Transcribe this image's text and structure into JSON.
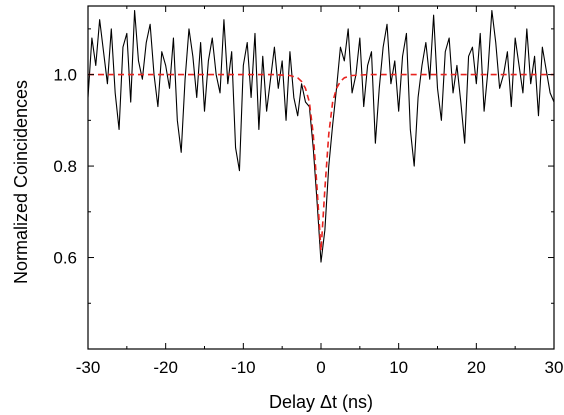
{
  "chart_data": {
    "type": "line",
    "title": "",
    "xlabel": "Delay Δt (ns)",
    "ylabel": "Normalized Coincidences",
    "xlim": [
      -30,
      30
    ],
    "ylim": [
      0.4,
      1.15
    ],
    "x_ticks": [
      -30,
      -20,
      -10,
      0,
      10,
      20,
      30
    ],
    "x_tick_labels": [
      "-30",
      "-20",
      "-10",
      "0",
      "10",
      "20",
      "30"
    ],
    "y_ticks": [
      0.6,
      0.8,
      1.0
    ],
    "y_tick_labels": [
      "0.6",
      "0.8",
      "1.0"
    ],
    "grid": false,
    "legend": "none",
    "series": [
      {
        "style": "solid",
        "color": "#000000",
        "x": [
          -30.0,
          -29.5,
          -29.0,
          -28.5,
          -28.0,
          -27.5,
          -27.0,
          -26.5,
          -26.0,
          -25.5,
          -25.0,
          -24.5,
          -24.0,
          -23.5,
          -23.0,
          -22.5,
          -22.0,
          -21.5,
          -21.0,
          -20.5,
          -20.0,
          -19.5,
          -19.0,
          -18.5,
          -18.0,
          -17.5,
          -17.0,
          -16.5,
          -16.0,
          -15.5,
          -15.0,
          -14.5,
          -14.0,
          -13.5,
          -13.0,
          -12.5,
          -12.0,
          -11.5,
          -11.0,
          -10.5,
          -10.0,
          -9.5,
          -9.0,
          -8.5,
          -8.0,
          -7.5,
          -7.0,
          -6.5,
          -6.0,
          -5.5,
          -5.0,
          -4.5,
          -4.0,
          -3.5,
          -3.0,
          -2.5,
          -2.0,
          -1.5,
          -1.0,
          -0.5,
          0.0,
          0.5,
          1.0,
          1.5,
          2.0,
          2.5,
          3.0,
          3.5,
          4.0,
          4.5,
          5.0,
          5.5,
          6.0,
          6.5,
          7.0,
          7.5,
          8.0,
          8.5,
          9.0,
          9.5,
          10.0,
          10.5,
          11.0,
          11.5,
          12.0,
          12.5,
          13.0,
          13.5,
          14.0,
          14.5,
          15.0,
          15.5,
          16.0,
          16.5,
          17.0,
          17.5,
          18.0,
          18.5,
          19.0,
          19.5,
          20.0,
          20.5,
          21.0,
          21.5,
          22.0,
          22.5,
          23.0,
          23.5,
          24.0,
          24.5,
          25.0,
          25.5,
          26.0,
          26.5,
          27.0,
          27.5,
          28.0,
          28.5,
          29.0,
          29.5,
          30.0
        ],
        "y": [
          0.95,
          1.08,
          1.02,
          1.12,
          1.05,
          0.98,
          1.1,
          0.96,
          0.88,
          1.06,
          1.09,
          0.94,
          1.14,
          1.03,
          0.99,
          1.07,
          1.11,
          1.0,
          0.93,
          1.05,
          1.02,
          0.97,
          1.08,
          0.9,
          0.83,
          0.99,
          1.1,
          1.04,
          0.95,
          1.07,
          0.92,
          1.03,
          1.08,
          1.0,
          0.96,
          1.12,
          0.98,
          1.05,
          0.84,
          0.79,
          1.02,
          1.07,
          0.95,
          1.09,
          0.88,
          1.04,
          0.92,
          0.99,
          1.06,
          0.97,
          1.03,
          0.9,
          1.05,
          0.95,
          0.91,
          0.98,
          0.94,
          0.93,
          0.84,
          0.72,
          0.59,
          0.66,
          0.8,
          0.89,
          0.97,
          1.06,
          1.03,
          1.1,
          0.96,
          1.0,
          1.08,
          0.93,
          1.02,
          1.05,
          0.85,
          0.97,
          1.06,
          1.11,
          0.98,
          1.03,
          0.92,
          1.04,
          1.09,
          0.88,
          0.8,
          0.95,
          1.02,
          1.07,
          0.99,
          1.13,
          0.97,
          0.9,
          1.05,
          1.08,
          0.96,
          1.02,
          0.94,
          0.85,
          1.04,
          1.06,
          0.98,
          1.09,
          0.92,
          1.01,
          1.14,
          1.07,
          0.97,
          1.0,
          1.05,
          0.93,
          1.08,
          1.02,
          0.96,
          1.1,
          0.98,
          1.04,
          0.91,
          1.06,
          1.01,
          0.96,
          0.94
        ]
      },
      {
        "style": "dashed",
        "color": "#e8231f",
        "x": [
          -30,
          -6,
          -4,
          -3,
          -2.5,
          -2,
          -1.5,
          -1,
          -0.5,
          0,
          0.5,
          1,
          1.5,
          2,
          2.5,
          3,
          4,
          6,
          30
        ],
        "y": [
          1.0,
          1.0,
          0.998,
          0.993,
          0.985,
          0.97,
          0.94,
          0.87,
          0.75,
          0.615,
          0.75,
          0.87,
          0.94,
          0.97,
          0.985,
          0.993,
          0.998,
          1.0,
          1.0
        ]
      }
    ]
  }
}
